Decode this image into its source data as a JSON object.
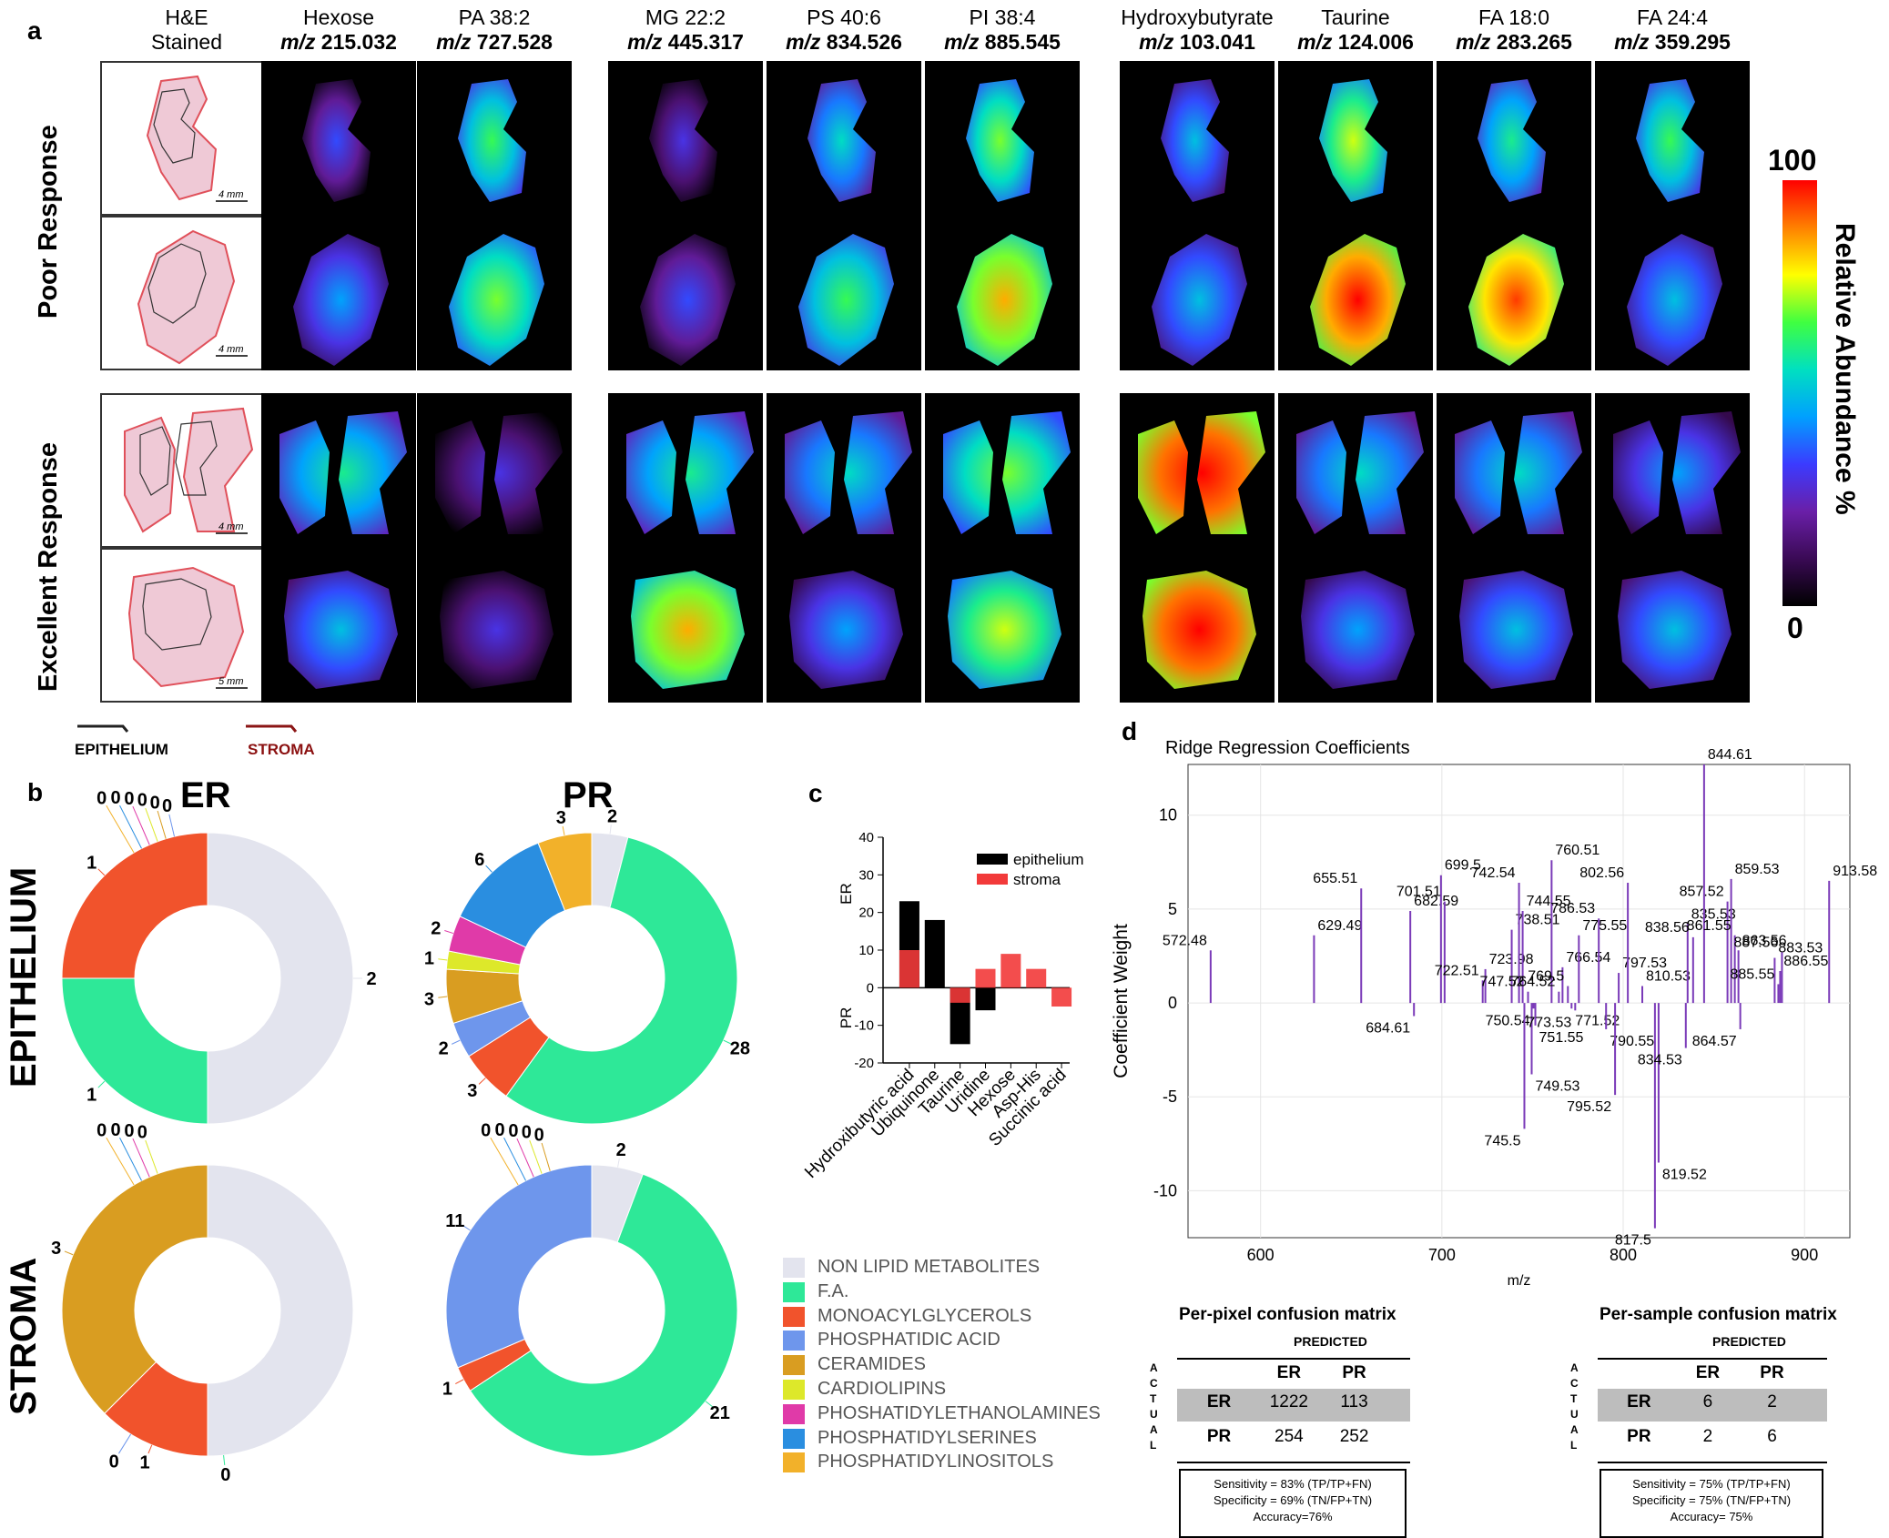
{
  "panel_letters": {
    "a": "a",
    "b": "b",
    "c": "c",
    "d": "d"
  },
  "panel_a": {
    "columns": [
      {
        "name": "H&E",
        "sub": "Stained",
        "mz_prefix": "",
        "mz": ""
      },
      {
        "name": "Hexose",
        "mz_prefix": "m/z",
        "mz": "215.032"
      },
      {
        "name": "PA 38:2",
        "mz_prefix": "m/z",
        "mz": "727.528"
      },
      {
        "name": "MG 22:2",
        "mz_prefix": "m/z",
        "mz": "445.317"
      },
      {
        "name": "PS 40:6",
        "mz_prefix": "m/z",
        "mz": "834.526"
      },
      {
        "name": "PI 38:4",
        "mz_prefix": "m/z",
        "mz": "885.545"
      },
      {
        "name": "Hydroxybutyrate",
        "mz_prefix": "m/z",
        "mz": "103.041"
      },
      {
        "name": "Taurine",
        "mz_prefix": "m/z",
        "mz": "124.006"
      },
      {
        "name": "FA 18:0",
        "mz_prefix": "m/z",
        "mz": "283.265"
      },
      {
        "name": "FA 24:4",
        "mz_prefix": "m/z",
        "mz": "359.295"
      }
    ],
    "row_groups": [
      "Poor Response",
      "Excellent Response"
    ],
    "scale_bars": [
      "4 mm",
      "4 mm",
      "4 mm",
      "5 mm"
    ],
    "colorbar": {
      "max": "100",
      "min": "0",
      "label": "Relative Abundance %",
      "colors": [
        "#000000",
        "#3a0a55",
        "#6a1fa8",
        "#3b3bff",
        "#00a0ff",
        "#00e0c0",
        "#40ff40",
        "#ffff00",
        "#ff8000",
        "#ff0000"
      ]
    },
    "legend": {
      "epithelium": "EPITHELIUM",
      "stroma": "STROMA"
    },
    "tile_intensity_levels": [
      [
        0.2,
        0.5,
        0.15,
        0.4,
        0.55,
        0.35,
        0.6,
        0.45,
        0.5
      ],
      [
        0.3,
        0.55,
        0.2,
        0.5,
        0.7,
        0.35,
        0.85,
        0.8,
        0.35
      ],
      [
        0.45,
        0.15,
        0.45,
        0.4,
        0.55,
        0.9,
        0.4,
        0.4,
        0.3
      ],
      [
        0.35,
        0.15,
        0.7,
        0.3,
        0.6,
        0.9,
        0.3,
        0.35,
        0.35
      ]
    ]
  },
  "panel_b": {
    "rows": [
      "EPITHELIUM",
      "STROMA"
    ],
    "cols": [
      "ER",
      "PR"
    ]
  },
  "legend_b": [
    {
      "label": "NON LIPID METABOLITES",
      "color": "#e3e4ee"
    },
    {
      "label": "F.A.",
      "color": "#2ee898"
    },
    {
      "label": "MONOACYLGLYCEROLS",
      "color": "#f1532c"
    },
    {
      "label": "PHOSPHATIDIC ACID",
      "color": "#6e96ec"
    },
    {
      "label": "CERAMIDES",
      "color": "#d99d21"
    },
    {
      "label": "CARDIOLIPINS",
      "color": "#dde82a"
    },
    {
      "label": "PHOSHATIDYLETHANOLAMINES",
      "color": "#e03aa8"
    },
    {
      "label": "PHOSPHATIDYLSERINES",
      "color": "#2a8ee0"
    },
    {
      "label": "PHOSPHATIDYLINOSITOLS",
      "color": "#f2b12a"
    }
  ],
  "panel_c": {
    "ylabel_top": "ER",
    "ylabel_bottom": "PR",
    "legend": [
      "epithelium",
      "stroma"
    ],
    "colors": {
      "epithelium": "#000000",
      "stroma": "#f23a3a"
    }
  },
  "panel_d": {
    "ppx": {
      "title": "Per-pixel confusion matrix",
      "predicted": "PREDICTED",
      "actual": "ACTUAL",
      "col_labels": [
        "ER",
        "PR"
      ],
      "row_labels": [
        "ER",
        "PR"
      ],
      "cells": [
        [
          "1222",
          "113"
        ],
        [
          "254",
          "252"
        ]
      ],
      "notes": [
        "Sensitivity = 83% (TP/TP+FN)",
        "Specificity = 69% (TN/FP+TN)",
        "Accuracy=76%"
      ]
    },
    "psm": {
      "title": "Per-sample confusion matrix",
      "predicted": "PREDICTED",
      "actual": "ACTUAL",
      "col_labels": [
        "ER",
        "PR"
      ],
      "row_labels": [
        "ER",
        "PR"
      ],
      "cells": [
        [
          "6",
          "2"
        ],
        [
          "2",
          "6"
        ]
      ],
      "notes": [
        "Sensitivity = 75% (TP/TP+FN)",
        "Specificity = 75% (TN/FP+TN)",
        "Accuracy= 75%"
      ]
    }
  },
  "chart_data": [
    {
      "type": "pie",
      "subtype": "donut",
      "title": "ER",
      "panel": "b",
      "row": "EPITHELIUM",
      "categories": [
        "NON LIPID METABOLITES",
        "F.A.",
        "MONOACYLGLYCEROLS",
        "PHOSPHATIDIC ACID",
        "CERAMIDES",
        "CARDIOLIPINS",
        "PHOSHATIDYLETHANOLAMINES",
        "PHOSPHATIDYLSERINES",
        "PHOSPHATIDYLINOSITOLS"
      ],
      "values": [
        2,
        1,
        1,
        0,
        0,
        0,
        0,
        0,
        0
      ],
      "data_labels": [
        "2",
        "1",
        "1",
        "0",
        "0",
        "0",
        "0",
        "0",
        "0"
      ]
    },
    {
      "type": "pie",
      "subtype": "donut",
      "title": "PR",
      "panel": "b",
      "row": "EPITHELIUM",
      "categories": [
        "NON LIPID METABOLITES",
        "F.A.",
        "MONOACYLGLYCEROLS",
        "PHOSPHATIDIC ACID",
        "CERAMIDES",
        "CARDIOLIPINS",
        "PHOSHATIDYLETHANOLAMINES",
        "PHOSPHATIDYLSERINES",
        "PHOSPHATIDYLINOSITOLS"
      ],
      "values": [
        2,
        28,
        3,
        2,
        3,
        1,
        2,
        6,
        3
      ],
      "data_labels": [
        "2",
        "28",
        "3",
        "2",
        "3",
        "1",
        "2",
        "6",
        "3"
      ]
    },
    {
      "type": "pie",
      "subtype": "donut",
      "title": "",
      "panel": "b",
      "row": "STROMA",
      "categories": [
        "NON LIPID METABOLITES",
        "F.A.",
        "MONOACYLGLYCEROLS",
        "PHOSPHATIDIC ACID",
        "CERAMIDES",
        "CARDIOLIPINS",
        "PHOSHATIDYLETHANOLAMINES",
        "PHOSPHATIDYLSERINES",
        "PHOSPHATIDYLINOSITOLS"
      ],
      "values": [
        4,
        0,
        1,
        0,
        3,
        0,
        0,
        0,
        0
      ],
      "data_labels": [
        "",
        "0",
        "1",
        "0",
        "3",
        "0",
        "0",
        "0",
        "0"
      ]
    },
    {
      "type": "pie",
      "subtype": "donut",
      "title": "",
      "panel": "b",
      "row": "STROMA",
      "categories": [
        "NON LIPID METABOLITES",
        "F.A.",
        "MONOACYLGLYCEROLS",
        "PHOSPHATIDIC ACID",
        "CERAMIDES",
        "CARDIOLIPINS",
        "PHOSHATIDYLETHANOLAMINES",
        "PHOSPHATIDYLSERINES",
        "PHOSPHATIDYLINOSITOLS"
      ],
      "values": [
        2,
        21,
        1,
        11,
        0,
        0,
        0,
        0,
        0
      ],
      "data_labels": [
        "2",
        "21",
        "1",
        "11",
        "0",
        "0",
        "0",
        "0",
        "0"
      ]
    },
    {
      "type": "bar",
      "subtype": "stacked",
      "panel": "c",
      "categories": [
        "Hydroxibutyric acid",
        "Ubiquinone",
        "Taurine",
        "Uridine",
        "Hexose",
        "Asp-His",
        "Succinic acid"
      ],
      "series": [
        {
          "name": "epithelium",
          "values": [
            23,
            18,
            -15,
            -6,
            0,
            0,
            0
          ]
        },
        {
          "name": "stroma",
          "values": [
            10,
            0,
            -4,
            5,
            9,
            5,
            -5
          ]
        }
      ],
      "ylabel_top": "ER",
      "ylabel_bottom": "PR",
      "ylim": [
        -20,
        40
      ],
      "yticks": [
        -20,
        -10,
        0,
        10,
        20,
        30,
        40
      ],
      "legend_position": "top-right"
    },
    {
      "type": "bar",
      "subtype": "stem",
      "panel": "d",
      "title": "Ridge Regression Coefficients",
      "xlabel": "m/z",
      "ylabel": "Coefficient Weight",
      "xlim": [
        560,
        925
      ],
      "ylim": [
        -12.5,
        12.7
      ],
      "xticks": [
        600,
        700,
        800,
        900
      ],
      "yticks": [
        -10,
        -5,
        0,
        5,
        10
      ],
      "grid": true,
      "points": [
        {
          "x": 572.48,
          "y": 2.8,
          "label": "572.48"
        },
        {
          "x": 629.49,
          "y": 3.6,
          "label": "629.49"
        },
        {
          "x": 655.51,
          "y": 6.1,
          "label": "655.51"
        },
        {
          "x": 682.59,
          "y": 4.9,
          "label": "682.59"
        },
        {
          "x": 684.61,
          "y": -0.7,
          "label": "684.61"
        },
        {
          "x": 699.5,
          "y": 6.8,
          "label": "699.5"
        },
        {
          "x": 701.51,
          "y": 5.4,
          "label": "701.51"
        },
        {
          "x": 723.98,
          "y": 1.8,
          "label": "723.98"
        },
        {
          "x": 722.51,
          "y": 1.2,
          "label": "722.51"
        },
        {
          "x": 738.51,
          "y": 3.9,
          "label": "738.51"
        },
        {
          "x": 742.54,
          "y": 6.4,
          "label": "742.54"
        },
        {
          "x": 744.55,
          "y": 4.9,
          "label": "744.55"
        },
        {
          "x": 747.52,
          "y": 0.6,
          "label": "747.52"
        },
        {
          "x": 749.53,
          "y": -3.8,
          "label": "749.53"
        },
        {
          "x": 750.54,
          "y": -0.3,
          "label": "750.54"
        },
        {
          "x": 751.55,
          "y": -1.2,
          "label": "751.55"
        },
        {
          "x": 745.5,
          "y": -6.7,
          "label": "745.5"
        },
        {
          "x": 760.51,
          "y": 7.6,
          "label": "760.51"
        },
        {
          "x": 764.52,
          "y": 0.6,
          "label": "764.52"
        },
        {
          "x": 766.54,
          "y": 1.9,
          "label": "766.54"
        },
        {
          "x": 769.5,
          "y": 0.9,
          "label": "769.5"
        },
        {
          "x": 771.52,
          "y": -0.3,
          "label": "771.52"
        },
        {
          "x": 773.53,
          "y": -0.4,
          "label": "773.53"
        },
        {
          "x": 775.55,
          "y": 3.6,
          "label": "775.55"
        },
        {
          "x": 786.53,
          "y": 4.5,
          "label": "786.53"
        },
        {
          "x": 790.55,
          "y": -1.4,
          "label": "790.55"
        },
        {
          "x": 795.52,
          "y": -4.9,
          "label": "795.52"
        },
        {
          "x": 797.53,
          "y": 1.6,
          "label": "797.53"
        },
        {
          "x": 802.56,
          "y": 6.4,
          "label": "802.56"
        },
        {
          "x": 810.53,
          "y": 0.9,
          "label": "810.53"
        },
        {
          "x": 817.5,
          "y": -12.0,
          "label": "817.5"
        },
        {
          "x": 819.52,
          "y": -8.5,
          "label": "819.52"
        },
        {
          "x": 834.53,
          "y": -2.4,
          "label": "834.53"
        },
        {
          "x": 835.53,
          "y": 4.2,
          "label": "835.53"
        },
        {
          "x": 838.56,
          "y": 3.5,
          "label": "838.56"
        },
        {
          "x": 844.61,
          "y": 12.7,
          "label": "844.61"
        },
        {
          "x": 857.52,
          "y": 5.4,
          "label": "857.52"
        },
        {
          "x": 859.53,
          "y": 6.6,
          "label": "859.53"
        },
        {
          "x": 861.55,
          "y": 3.6,
          "label": "861.55"
        },
        {
          "x": 863.56,
          "y": 2.8,
          "label": "863.56"
        },
        {
          "x": 864.57,
          "y": -1.4,
          "label": "864.57"
        },
        {
          "x": 883.53,
          "y": 2.4,
          "label": "883.53"
        },
        {
          "x": 885.55,
          "y": 1.0,
          "label": "885.55"
        },
        {
          "x": 886.55,
          "y": 1.7,
          "label": "886.55"
        },
        {
          "x": 887.56,
          "y": 2.7,
          "label": "887.56"
        },
        {
          "x": 913.58,
          "y": 6.5,
          "label": "913.58"
        }
      ]
    }
  ]
}
